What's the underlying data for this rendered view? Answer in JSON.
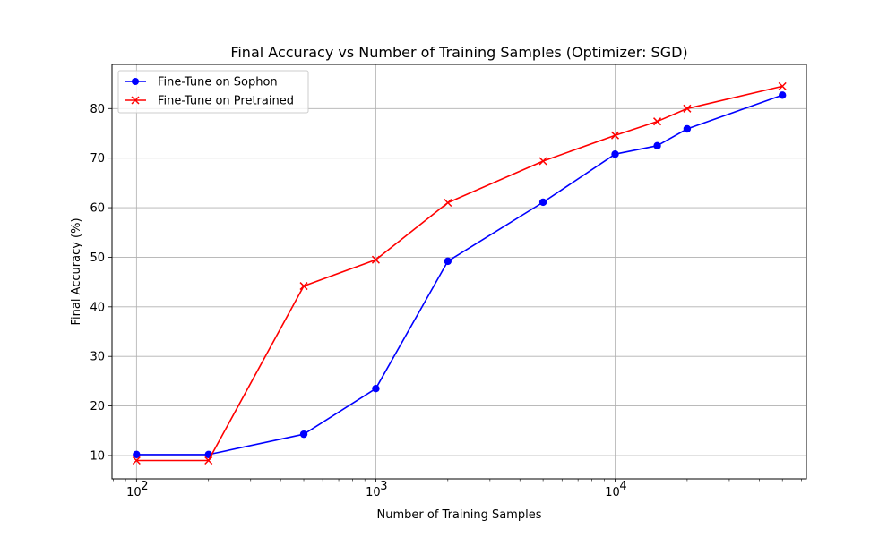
{
  "chart_data": {
    "type": "line",
    "title": "Final Accuracy vs Number of Training Samples (Optimizer: SGD)",
    "xlabel": "Number of Training Samples",
    "ylabel": "Final Accuracy (%)",
    "xscale": "log",
    "xlim": [
      79,
      63000
    ],
    "ylim": [
      5.3,
      88.9
    ],
    "grid": true,
    "legend_position": "top-left",
    "x_ticks": [
      {
        "value": 100,
        "base": "10",
        "exp": "2"
      },
      {
        "value": 1000,
        "base": "10",
        "exp": "3"
      },
      {
        "value": 10000,
        "base": "10",
        "exp": "4"
      }
    ],
    "y_ticks": [
      10,
      20,
      30,
      40,
      50,
      60,
      70,
      80
    ],
    "series": [
      {
        "name": "Fine-Tune on Sophon",
        "color": "#0000ff",
        "marker": "circle",
        "x": [
          100,
          200,
          500,
          1000,
          2000,
          5000,
          10000,
          15000,
          20000,
          50000
        ],
        "y": [
          10.2,
          10.2,
          14.3,
          23.5,
          49.2,
          61.1,
          70.8,
          72.5,
          75.9,
          82.7
        ]
      },
      {
        "name": "Fine-Tune on Pretrained",
        "color": "#ff0000",
        "marker": "x",
        "x": [
          100,
          200,
          500,
          1000,
          2000,
          5000,
          10000,
          15000,
          20000,
          50000
        ],
        "y": [
          9.0,
          9.0,
          44.2,
          49.5,
          61.0,
          69.4,
          74.6,
          77.4,
          80.0,
          84.5
        ]
      }
    ]
  }
}
